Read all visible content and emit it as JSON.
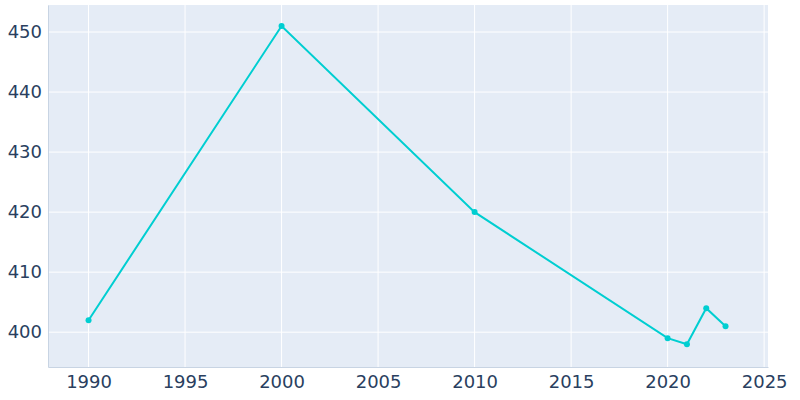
{
  "chart_data": {
    "type": "line",
    "x": [
      1990,
      2000,
      2010,
      2020,
      2021,
      2022,
      2023
    ],
    "values": [
      402,
      451,
      420,
      399,
      398,
      404,
      401
    ],
    "color": "#00ced1",
    "marker": "circle",
    "xlim": [
      1987.9,
      2025.2
    ],
    "xticks": [
      1990,
      1995,
      2000,
      2005,
      2010,
      2015,
      2020,
      2025
    ],
    "ylim": [
      394.2,
      454.5
    ],
    "yticks": [
      400,
      410,
      420,
      430,
      440,
      450
    ],
    "grid": true
  }
}
